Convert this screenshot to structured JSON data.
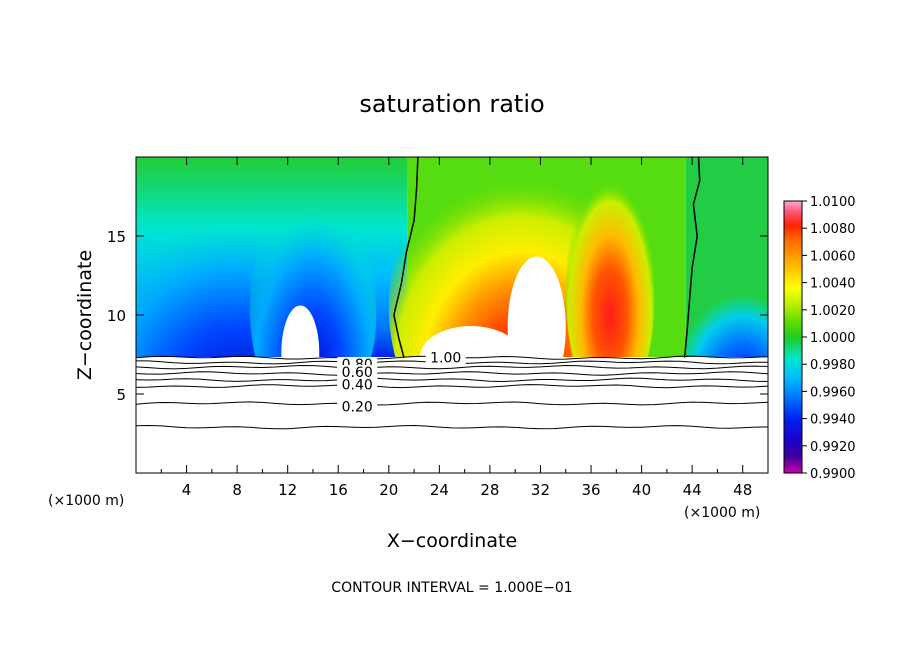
{
  "chart_data": {
    "type": "heatmap",
    "title": "saturation ratio",
    "xlabel": "X−coordinate",
    "ylabel": "Z−coordinate",
    "x_unit_left": "(×1000 m)",
    "x_unit_right": "(×1000 m)",
    "xlim": [
      0,
      50
    ],
    "ylim": [
      0,
      20
    ],
    "x_ticks": [
      4,
      8,
      12,
      16,
      20,
      24,
      28,
      32,
      36,
      40,
      44,
      48
    ],
    "y_ticks": [
      5,
      10,
      15
    ],
    "footer": "CONTOUR INTERVAL = 1.000E−01",
    "colorbar": {
      "labels": [
        "1.0100",
        "1.0080",
        "1.0060",
        "1.0040",
        "1.0020",
        "1.0000",
        "0.9980",
        "0.9960",
        "0.9940",
        "0.9920",
        "0.9900"
      ],
      "colors": [
        "#e6009e",
        "#3d0099",
        "#1a00cc",
        "#0022ee",
        "#0077ff",
        "#00bbff",
        "#00e6cc",
        "#22cc22",
        "#66dd00",
        "#bbee00",
        "#ffff00",
        "#ffcc00",
        "#ff9900",
        "#ff6600",
        "#ff2200",
        "#ff5577",
        "#ffaacc"
      ]
    },
    "contour_labels": [
      {
        "text": "1.00",
        "x": 24.5,
        "y": 7.3
      },
      {
        "text": "0.80",
        "x": 17.5,
        "y": 6.9
      },
      {
        "text": "0.60",
        "x": 17.5,
        "y": 6.4
      },
      {
        "text": "0.40",
        "x": 17.5,
        "y": 5.6
      },
      {
        "text": "0.20",
        "x": 17.5,
        "y": 4.2
      }
    ],
    "contour_levels_z": [
      7.3,
      7.0,
      6.7,
      6.3,
      5.9,
      5.5,
      4.4,
      2.9
    ],
    "cloud_base_z": 7.3
  }
}
